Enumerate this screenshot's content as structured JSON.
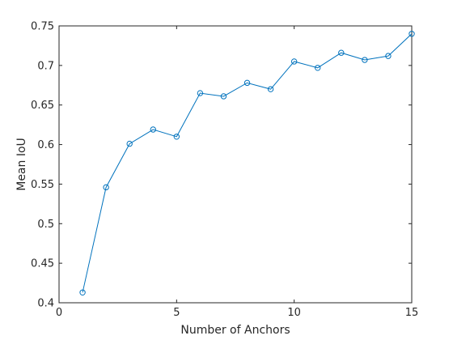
{
  "chart_data": {
    "type": "line",
    "title": "",
    "xlabel": "Number of Anchors",
    "ylabel": "Mean IoU",
    "xlim": [
      0,
      15
    ],
    "ylim": [
      0.4,
      0.75
    ],
    "xticks": [
      0,
      5,
      10,
      15
    ],
    "xtick_labels": [
      "0",
      "5",
      "10",
      "15"
    ],
    "yticks": [
      0.4,
      0.45,
      0.5,
      0.55,
      0.6,
      0.65,
      0.7,
      0.75
    ],
    "ytick_labels": [
      "0.4",
      "0.45",
      "0.5",
      "0.55",
      "0.6",
      "0.65",
      "0.7",
      "0.75"
    ],
    "grid": false,
    "marker": "circle",
    "color": "#0072bd",
    "x": [
      1,
      2,
      3,
      4,
      5,
      6,
      7,
      8,
      9,
      10,
      11,
      12,
      13,
      14,
      15
    ],
    "y": [
      0.413,
      0.546,
      0.601,
      0.619,
      0.61,
      0.665,
      0.661,
      0.678,
      0.67,
      0.705,
      0.697,
      0.716,
      0.707,
      0.712,
      0.74
    ]
  }
}
